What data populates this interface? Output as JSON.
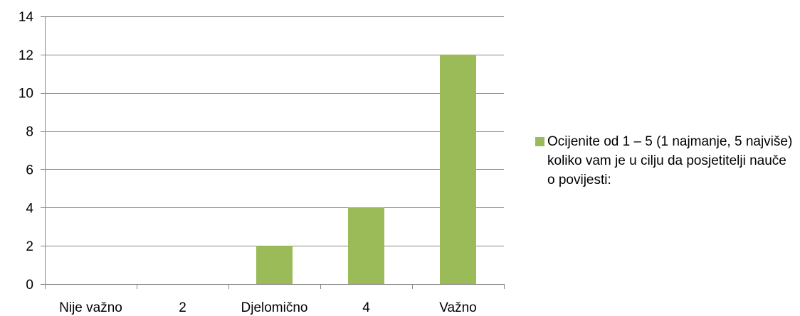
{
  "chart_data": {
    "type": "bar",
    "categories": [
      "Nije važno",
      "2",
      "Djelomično",
      "4",
      "Važno"
    ],
    "series": [
      {
        "name": "Ocijenite od 1 – 5 (1 najmanje, 5 najviše) koliko vam je u cilju da posjetitelji nauče o povijesti:",
        "values": [
          0,
          0,
          2,
          4,
          12
        ],
        "color": "#9bbb59"
      }
    ],
    "title": "",
    "xlabel": "",
    "ylabel": "",
    "ylim": [
      0,
      14
    ],
    "yticks": [
      0,
      2,
      4,
      6,
      8,
      10,
      12,
      14
    ],
    "grid": true,
    "legend_position": "right"
  }
}
